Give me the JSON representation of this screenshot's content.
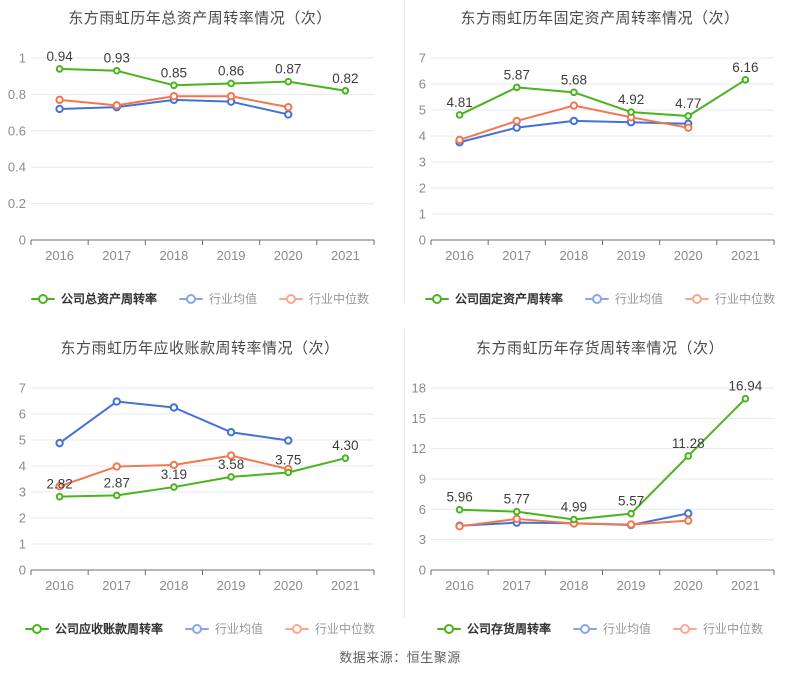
{
  "page": {
    "footer_source": "数据来源：恒生聚源"
  },
  "palette": {
    "company": "#4bb31e",
    "industry_mean": "#4272d7",
    "industry_median": "#f3764e"
  },
  "ui": {
    "grid_line": "#e4eaf3",
    "axis_line": "#6e6e6e",
    "tick_text": "#8c8c8c",
    "value_text": "#3d3d3d",
    "title_text": "#4a4a4a",
    "divider": "#eaeaea",
    "background": "#ffffff"
  },
  "chart_data": [
    {
      "type": "line",
      "title": "东方雨虹历年总资产周转率情况（次）",
      "categories": [
        "2016",
        "2017",
        "2018",
        "2019",
        "2020",
        "2021"
      ],
      "ylim": [
        0,
        1
      ],
      "ytick_values": [
        0,
        0.2,
        0.4,
        0.6,
        0.8,
        1
      ],
      "ytick_labels": [
        "0",
        "0.2",
        "0.4",
        "0.6",
        "0.8",
        "1"
      ],
      "grid": true,
      "legend_position": "bottom",
      "series": [
        {
          "name": "公司总资产周转率",
          "color_key": "company",
          "values": [
            0.94,
            0.93,
            0.85,
            0.86,
            0.87,
            0.82
          ],
          "point_labels": [
            "0.94",
            "0.93",
            "0.85",
            "0.86",
            "0.87",
            "0.82"
          ]
        },
        {
          "name": "行业均值",
          "color_key": "industry_mean",
          "values": [
            0.72,
            0.73,
            0.77,
            0.76,
            0.69,
            null
          ]
        },
        {
          "name": "行业中位数",
          "color_key": "industry_median",
          "values": [
            0.77,
            0.74,
            0.79,
            0.79,
            0.73,
            null
          ]
        }
      ]
    },
    {
      "type": "line",
      "title": "东方雨虹历年固定资产周转率情况（次）",
      "categories": [
        "2016",
        "2017",
        "2018",
        "2019",
        "2020",
        "2021"
      ],
      "ylim": [
        0,
        7
      ],
      "ytick_values": [
        0,
        1,
        2,
        3,
        4,
        5,
        6,
        7
      ],
      "ytick_labels": [
        "0",
        "1",
        "2",
        "3",
        "4",
        "5",
        "6",
        "7"
      ],
      "grid": true,
      "legend_position": "bottom",
      "series": [
        {
          "name": "公司固定资产周转率",
          "color_key": "company",
          "values": [
            4.81,
            5.87,
            5.68,
            4.92,
            4.77,
            6.16
          ],
          "point_labels": [
            "4.81",
            "5.87",
            "5.68",
            "4.92",
            "4.77",
            "6.16"
          ]
        },
        {
          "name": "行业均值",
          "color_key": "industry_mean",
          "values": [
            3.76,
            4.32,
            4.58,
            4.53,
            4.47,
            null
          ]
        },
        {
          "name": "行业中位数",
          "color_key": "industry_median",
          "values": [
            3.85,
            4.58,
            5.17,
            4.72,
            4.32,
            null
          ]
        }
      ]
    },
    {
      "type": "line",
      "title": "东方雨虹历年应收账款周转率情况（次）",
      "categories": [
        "2016",
        "2017",
        "2018",
        "2019",
        "2020",
        "2021"
      ],
      "ylim": [
        0,
        7
      ],
      "ytick_values": [
        0,
        1,
        2,
        3,
        4,
        5,
        6,
        7
      ],
      "ytick_labels": [
        "0",
        "1",
        "2",
        "3",
        "4",
        "5",
        "6",
        "7"
      ],
      "grid": true,
      "legend_position": "bottom",
      "series": [
        {
          "name": "公司应收账款周转率",
          "color_key": "company",
          "values": [
            2.82,
            2.87,
            3.19,
            3.58,
            3.75,
            4.3
          ],
          "point_labels": [
            "2.82",
            "2.87",
            "3.19",
            "3.58",
            "3.75",
            "4.30"
          ]
        },
        {
          "name": "行业均值",
          "color_key": "industry_mean",
          "values": [
            4.88,
            6.48,
            6.25,
            5.3,
            4.98,
            null
          ]
        },
        {
          "name": "行业中位数",
          "color_key": "industry_median",
          "values": [
            3.22,
            3.98,
            4.04,
            4.4,
            3.88,
            null
          ]
        }
      ]
    },
    {
      "type": "line",
      "title": "东方雨虹历年存货周转率情况（次）",
      "categories": [
        "2016",
        "2017",
        "2018",
        "2019",
        "2020",
        "2021"
      ],
      "ylim": [
        0,
        18
      ],
      "ytick_values": [
        0,
        3,
        6,
        9,
        12,
        15,
        18
      ],
      "ytick_labels": [
        "0",
        "3",
        "6",
        "9",
        "12",
        "15",
        "18"
      ],
      "grid": true,
      "legend_position": "bottom",
      "series": [
        {
          "name": "公司存货周转率",
          "color_key": "company",
          "values": [
            5.96,
            5.77,
            4.99,
            5.57,
            11.28,
            16.94
          ],
          "point_labels": [
            "5.96",
            "5.77",
            "4.99",
            "5.57",
            "11.28",
            "16.94"
          ]
        },
        {
          "name": "行业均值",
          "color_key": "industry_mean",
          "values": [
            4.38,
            4.68,
            4.62,
            4.45,
            5.6,
            null
          ]
        },
        {
          "name": "行业中位数",
          "color_key": "industry_median",
          "values": [
            4.32,
            5.05,
            4.6,
            4.5,
            4.88,
            null
          ]
        }
      ]
    }
  ]
}
